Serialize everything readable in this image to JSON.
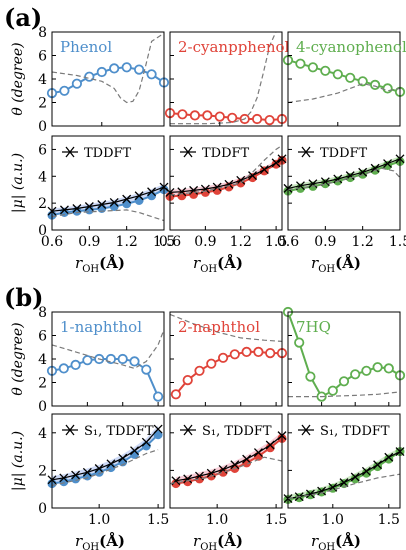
{
  "figure": {
    "panel_labels": [
      "(a)",
      "(b)"
    ],
    "theta_ylabel": "θ (degree)",
    "mu_ylabel": "|μ| (a.u.)",
    "xlabel_base": "r",
    "xlabel_sub": "OH",
    "xlabel_unit": "(Å)"
  },
  "colors": {
    "phenol": "#4f8fcb",
    "cyano2": "#e0443a",
    "cyano4": "#5fae4f",
    "naphthol1": "#4f8fcb",
    "naphthol2": "#e0443a",
    "hq7": "#5fae4f",
    "fill_blue": "#c9d6f5",
    "fill_red": "#f6c8d3",
    "fill_green": "#c6e6bd",
    "dashed": "#7a7a7a"
  },
  "chart_data": [
    {
      "id": "a-phenol-theta",
      "type": "line",
      "title": "Phenol",
      "color_key": "phenol",
      "xlim": [
        0.6,
        1.5
      ],
      "ylim": [
        0,
        8
      ],
      "yticks": [
        0,
        2,
        4,
        6,
        8
      ],
      "xticks": [],
      "series": [
        {
          "x": [
            0.6,
            0.7,
            0.8,
            0.9,
            1.0,
            1.1,
            1.2,
            1.3,
            1.4,
            1.5
          ],
          "y": [
            2.8,
            3.0,
            3.6,
            4.2,
            4.6,
            4.9,
            5.0,
            4.8,
            4.4,
            3.7
          ]
        },
        {
          "style": "dashed",
          "x": [
            0.6,
            0.8,
            1.0,
            1.1,
            1.15,
            1.2,
            1.25,
            1.3,
            1.35,
            1.4,
            1.5
          ],
          "y": [
            4.6,
            4.3,
            3.8,
            3.2,
            2.4,
            2.0,
            2.1,
            3.0,
            5.0,
            7.2,
            7.9
          ]
        }
      ]
    },
    {
      "id": "a-cyano2-theta",
      "type": "line",
      "title": "2-cyanpphenol",
      "color_key": "cyano2",
      "xlim": [
        0.6,
        1.5
      ],
      "ylim": [
        0,
        8
      ],
      "yticks": [],
      "xticks": [],
      "series": [
        {
          "x": [
            0.6,
            0.7,
            0.8,
            0.9,
            1.0,
            1.1,
            1.2,
            1.3,
            1.4,
            1.5
          ],
          "y": [
            1.1,
            1.0,
            0.9,
            0.9,
            0.8,
            0.7,
            0.6,
            0.6,
            0.5,
            0.6
          ]
        },
        {
          "style": "dashed",
          "x": [
            0.6,
            0.9,
            1.1,
            1.2,
            1.25,
            1.3,
            1.35,
            1.4,
            1.45
          ],
          "y": [
            0.2,
            0.2,
            0.3,
            0.6,
            1.2,
            2.4,
            4.5,
            6.8,
            8.0
          ]
        }
      ]
    },
    {
      "id": "a-cyano4-theta",
      "type": "line",
      "title": "4-cyanophenol",
      "color_key": "cyano4",
      "xlim": [
        0.6,
        1.5
      ],
      "ylim": [
        0,
        8
      ],
      "yticks": [],
      "xticks": [],
      "series": [
        {
          "x": [
            0.6,
            0.7,
            0.8,
            0.9,
            1.0,
            1.1,
            1.2,
            1.3,
            1.4,
            1.5
          ],
          "y": [
            5.6,
            5.3,
            5.0,
            4.7,
            4.4,
            4.1,
            3.8,
            3.5,
            3.2,
            2.9
          ]
        },
        {
          "style": "dashed",
          "x": [
            0.6,
            0.8,
            1.0,
            1.1,
            1.2,
            1.3,
            1.4,
            1.5
          ],
          "y": [
            2.0,
            2.3,
            2.8,
            3.2,
            3.6,
            3.4,
            3.0,
            3.2
          ]
        }
      ]
    },
    {
      "id": "a-phenol-mu",
      "type": "line",
      "legend": "TDDFT",
      "color_key": "phenol",
      "fill_key": "fill_blue",
      "xlim": [
        0.6,
        1.5
      ],
      "ylim": [
        0,
        7
      ],
      "yticks": [
        0,
        2,
        4,
        6
      ],
      "xticks": [
        0.6,
        0.9,
        1.2,
        1.5
      ],
      "xticklabels": [
        "0.6",
        "0.9",
        "1.2",
        "1.5"
      ],
      "series": [
        {
          "x": [
            0.6,
            0.7,
            0.8,
            0.9,
            1.0,
            1.1,
            1.2,
            1.3,
            1.4,
            1.5
          ],
          "y": [
            1.1,
            1.3,
            1.4,
            1.5,
            1.6,
            1.75,
            1.95,
            2.2,
            2.55,
            3.0
          ]
        },
        {
          "style": "cross",
          "x": [
            0.6,
            0.7,
            0.8,
            0.9,
            1.0,
            1.1,
            1.2,
            1.3,
            1.4,
            1.5
          ],
          "y": [
            1.4,
            1.5,
            1.6,
            1.75,
            1.9,
            2.05,
            2.3,
            2.55,
            2.85,
            3.2
          ]
        },
        {
          "style": "dashed",
          "x": [
            0.6,
            0.8,
            1.0,
            1.2,
            1.3,
            1.4,
            1.5
          ],
          "y": [
            1.0,
            1.3,
            1.4,
            1.5,
            1.3,
            1.0,
            0.7
          ]
        }
      ]
    },
    {
      "id": "a-cyano2-mu",
      "type": "line",
      "legend": "TDDFT",
      "color_key": "cyano2",
      "fill_key": "fill_red",
      "xlim": [
        0.6,
        1.55
      ],
      "ylim": [
        0,
        7
      ],
      "yticks": [],
      "xticks": [
        0.6,
        0.9,
        1.2,
        1.5
      ],
      "xticklabels": [
        "0.6",
        "0.9",
        "1.2",
        "1.5"
      ],
      "series": [
        {
          "x": [
            0.6,
            0.7,
            0.8,
            0.9,
            1.0,
            1.1,
            1.2,
            1.3,
            1.4,
            1.5,
            1.55
          ],
          "y": [
            2.5,
            2.55,
            2.65,
            2.8,
            2.95,
            3.2,
            3.5,
            3.9,
            4.4,
            4.9,
            5.2
          ]
        },
        {
          "style": "cross",
          "x": [
            0.6,
            0.7,
            0.8,
            0.9,
            1.0,
            1.1,
            1.2,
            1.3,
            1.4,
            1.5,
            1.55
          ],
          "y": [
            2.8,
            2.85,
            2.95,
            3.05,
            3.2,
            3.4,
            3.7,
            4.05,
            4.5,
            5.0,
            5.3
          ]
        },
        {
          "style": "dashed",
          "x": [
            0.6,
            0.9,
            1.2,
            1.3,
            1.4,
            1.5,
            1.55
          ],
          "y": [
            2.6,
            2.9,
            3.5,
            4.3,
            5.2,
            6.0,
            6.3
          ]
        }
      ]
    },
    {
      "id": "a-cyano4-mu",
      "type": "line",
      "legend": "TDDFT",
      "color_key": "cyano4",
      "fill_key": "fill_green",
      "xlim": [
        0.6,
        1.5
      ],
      "ylim": [
        0,
        7
      ],
      "yticks": [],
      "xticks": [
        0.6,
        0.9,
        1.2,
        1.5
      ],
      "xticklabels": [
        "0.6",
        "0.9",
        "1.2",
        "1.5"
      ],
      "series": [
        {
          "x": [
            0.6,
            0.7,
            0.8,
            0.9,
            1.0,
            1.1,
            1.2,
            1.3,
            1.4,
            1.5
          ],
          "y": [
            2.9,
            3.1,
            3.25,
            3.45,
            3.65,
            3.9,
            4.15,
            4.45,
            4.8,
            5.1
          ]
        },
        {
          "style": "cross",
          "x": [
            0.6,
            0.7,
            0.8,
            0.9,
            1.0,
            1.1,
            1.2,
            1.3,
            1.4,
            1.5
          ],
          "y": [
            3.1,
            3.3,
            3.45,
            3.6,
            3.8,
            4.05,
            4.3,
            4.6,
            4.95,
            5.3
          ]
        },
        {
          "style": "dashed",
          "x": [
            0.6,
            0.9,
            1.2,
            1.35,
            1.45,
            1.5
          ],
          "y": [
            3.0,
            3.4,
            4.1,
            4.6,
            4.4,
            3.9
          ]
        }
      ]
    },
    {
      "id": "b-naphthol1-theta",
      "type": "line",
      "title": "1-naphthol",
      "color_key": "naphthol1",
      "xlim": [
        0.6,
        1.55
      ],
      "ylim": [
        0,
        8
      ],
      "yticks": [
        0,
        2,
        4,
        6,
        8
      ],
      "xticks": [],
      "series": [
        {
          "x": [
            0.6,
            0.7,
            0.8,
            0.9,
            1.0,
            1.1,
            1.2,
            1.3,
            1.4,
            1.5
          ],
          "y": [
            3.0,
            3.2,
            3.5,
            3.9,
            4.0,
            4.0,
            4.0,
            3.8,
            3.1,
            0.8
          ]
        },
        {
          "style": "dashed",
          "x": [
            0.6,
            0.8,
            1.0,
            1.2,
            1.3,
            1.4,
            1.5,
            1.55
          ],
          "y": [
            5.2,
            4.6,
            4.0,
            3.5,
            3.2,
            3.8,
            5.2,
            6.5
          ]
        }
      ]
    },
    {
      "id": "b-naphthol2-theta",
      "type": "line",
      "title": "2-naphthol",
      "color_key": "naphthol2",
      "xlim": [
        0.6,
        1.55
      ],
      "ylim": [
        0,
        8
      ],
      "yticks": [],
      "xticks": [],
      "series": [
        {
          "x": [
            0.65,
            0.75,
            0.85,
            0.95,
            1.05,
            1.15,
            1.25,
            1.35,
            1.45,
            1.55
          ],
          "y": [
            1.0,
            2.2,
            3.0,
            3.6,
            4.1,
            4.4,
            4.6,
            4.6,
            4.5,
            4.5
          ]
        },
        {
          "style": "dashed",
          "x": [
            0.6,
            0.8,
            1.0,
            1.2,
            1.4,
            1.55
          ],
          "y": [
            7.8,
            7.0,
            6.3,
            5.8,
            5.6,
            5.5
          ]
        }
      ]
    },
    {
      "id": "b-hq7-theta",
      "type": "line",
      "title": "7HQ",
      "color_key": "hq7",
      "xlim": [
        0.6,
        1.6
      ],
      "ylim": [
        0,
        8
      ],
      "yticks": [],
      "xticks": [],
      "series": [
        {
          "x": [
            0.6,
            0.7,
            0.8,
            0.9,
            1.0,
            1.1,
            1.2,
            1.3,
            1.4,
            1.5,
            1.6
          ],
          "y": [
            8.0,
            5.4,
            2.5,
            0.8,
            1.3,
            2.1,
            2.7,
            3.0,
            3.3,
            3.2,
            2.6
          ]
        },
        {
          "style": "dashed",
          "x": [
            0.6,
            0.9,
            1.2,
            1.4,
            1.6
          ],
          "y": [
            0.8,
            0.8,
            0.9,
            1.0,
            1.2
          ]
        }
      ]
    },
    {
      "id": "b-naphthol1-mu",
      "type": "line",
      "legend": "S₁, TDDFT",
      "color_key": "naphthol1",
      "fill_key": "fill_blue",
      "xlim": [
        0.6,
        1.55
      ],
      "ylim": [
        0,
        5
      ],
      "yticks": [
        0,
        2,
        4
      ],
      "xticks": [
        1.0,
        1.5
      ],
      "xticklabels": [
        "1.0",
        "1.5"
      ],
      "series": [
        {
          "x": [
            0.6,
            0.7,
            0.8,
            0.9,
            1.0,
            1.1,
            1.2,
            1.3,
            1.4,
            1.5
          ],
          "y": [
            1.3,
            1.4,
            1.55,
            1.7,
            1.9,
            2.15,
            2.45,
            2.85,
            3.3,
            3.9
          ]
        },
        {
          "style": "cross",
          "x": [
            0.6,
            0.7,
            0.8,
            0.9,
            1.0,
            1.1,
            1.2,
            1.3,
            1.4,
            1.5
          ],
          "y": [
            1.5,
            1.6,
            1.75,
            1.9,
            2.1,
            2.35,
            2.65,
            3.05,
            3.5,
            4.2
          ]
        },
        {
          "style": "dashed",
          "x": [
            0.6,
            0.9,
            1.2,
            1.4,
            1.5
          ],
          "y": [
            1.2,
            1.6,
            2.3,
            2.9,
            3.1
          ]
        }
      ]
    },
    {
      "id": "b-naphthol2-mu",
      "type": "line",
      "legend": "S₁, TDDFT",
      "color_key": "naphthol2",
      "fill_key": "fill_red",
      "xlim": [
        0.6,
        1.55
      ],
      "ylim": [
        0,
        5
      ],
      "yticks": [],
      "xticks": [
        1.0,
        1.5
      ],
      "xticklabels": [
        "1.0",
        "1.5"
      ],
      "series": [
        {
          "x": [
            0.65,
            0.75,
            0.85,
            0.95,
            1.05,
            1.15,
            1.25,
            1.35,
            1.45,
            1.55
          ],
          "y": [
            1.3,
            1.4,
            1.55,
            1.7,
            1.9,
            2.1,
            2.4,
            2.75,
            3.2,
            3.7
          ]
        },
        {
          "style": "cross",
          "x": [
            0.65,
            0.75,
            0.85,
            0.95,
            1.05,
            1.15,
            1.25,
            1.35,
            1.45,
            1.55
          ],
          "y": [
            1.45,
            1.55,
            1.7,
            1.85,
            2.05,
            2.3,
            2.6,
            2.95,
            3.35,
            3.85
          ]
        },
        {
          "style": "dashed",
          "x": [
            0.6,
            0.9,
            1.2,
            1.4,
            1.55
          ],
          "y": [
            1.3,
            1.6,
            2.2,
            2.7,
            2.5
          ]
        }
      ]
    },
    {
      "id": "b-hq7-mu",
      "type": "line",
      "legend": "S₁, TDDFT",
      "color_key": "hq7",
      "fill_key": "fill_green",
      "xlim": [
        0.6,
        1.6
      ],
      "ylim": [
        0,
        5
      ],
      "yticks": [],
      "xticks": [
        1.0,
        1.5
      ],
      "xticklabels": [
        "1.0",
        "1.5"
      ],
      "series": [
        {
          "x": [
            0.6,
            0.7,
            0.8,
            0.9,
            1.0,
            1.1,
            1.2,
            1.3,
            1.4,
            1.5,
            1.6
          ],
          "y": [
            0.45,
            0.55,
            0.7,
            0.85,
            1.05,
            1.3,
            1.55,
            1.85,
            2.2,
            2.6,
            3.0
          ]
        },
        {
          "style": "cross",
          "x": [
            0.6,
            0.7,
            0.8,
            0.9,
            1.0,
            1.1,
            1.2,
            1.3,
            1.4,
            1.5,
            1.6
          ],
          "y": [
            0.5,
            0.6,
            0.75,
            0.9,
            1.1,
            1.35,
            1.65,
            1.95,
            2.3,
            2.7,
            3.0
          ]
        },
        {
          "style": "dashed",
          "x": [
            0.6,
            0.9,
            1.2,
            1.4,
            1.6
          ],
          "y": [
            0.5,
            0.8,
            1.3,
            1.6,
            1.8
          ]
        }
      ]
    }
  ]
}
